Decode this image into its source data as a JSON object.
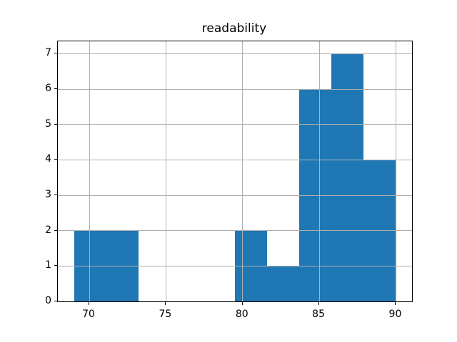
{
  "chart_data": {
    "type": "bar",
    "subtype": "histogram",
    "title": "readability",
    "xlabel": "",
    "ylabel": "",
    "bin_edges": [
      69.0,
      71.1,
      73.2,
      75.3,
      77.4,
      79.5,
      81.6,
      83.7,
      85.8,
      87.9,
      90.0
    ],
    "counts": [
      2,
      2,
      0,
      0,
      0,
      2,
      1,
      6,
      7,
      4
    ],
    "xticks": [
      70,
      75,
      80,
      85,
      90
    ],
    "yticks": [
      0,
      1,
      2,
      3,
      4,
      5,
      6,
      7
    ],
    "xlim": [
      67.95,
      91.05
    ],
    "ylim": [
      0,
      7.35
    ],
    "grid": true,
    "grid_over_bars": true,
    "legend": "none",
    "bar_color": "#1f77b4",
    "grid_color": "#b0b0b0",
    "spine_color": "#000000",
    "text_color": "#000000",
    "background_color": "#ffffff"
  }
}
